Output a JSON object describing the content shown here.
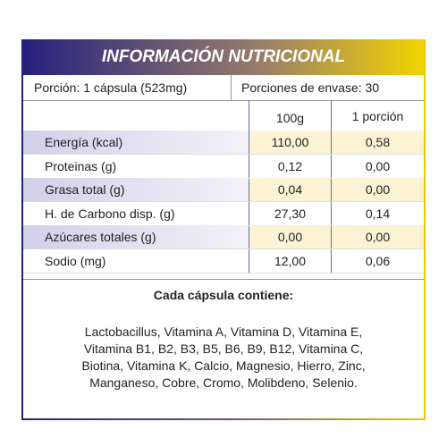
{
  "header": {
    "title": "INFORMACIÓN NUTRICIONAL"
  },
  "serving": {
    "portion": "Porción: 1 cápsula (523mg)",
    "servings": "Porciones de envase: 30"
  },
  "table": {
    "columns": [
      "100g",
      "1 porción"
    ],
    "rows": [
      [
        "Energía (kcal)",
        "110,00",
        "0,58"
      ],
      [
        "Proteinas (g)",
        "0,12",
        "0,00"
      ],
      [
        "Grasa total (g)",
        "0,04",
        "0,00"
      ],
      [
        "H. de Carbono disp. (g)",
        "27,30",
        "0,14"
      ],
      [
        "Azúcares totales (g)",
        "0,00",
        "0,00"
      ],
      [
        "Sodio (mg)",
        "12,00",
        "0,06"
      ]
    ]
  },
  "contents": {
    "heading": "Cada cápsula contiene:",
    "lines": [
      "Lactobacillus, Vitamina A, Vitamina D, Vitamina E,",
      "Vitamina B1, B2, B3, B5, B6, B9, B12, Vitamina C,",
      "Biotina, Vitamina K, Calcio, Magnesio, Hierro, Zinc,",
      "Manganeso, Cobre, Cromo, Molibdeno, Selenio."
    ]
  }
}
